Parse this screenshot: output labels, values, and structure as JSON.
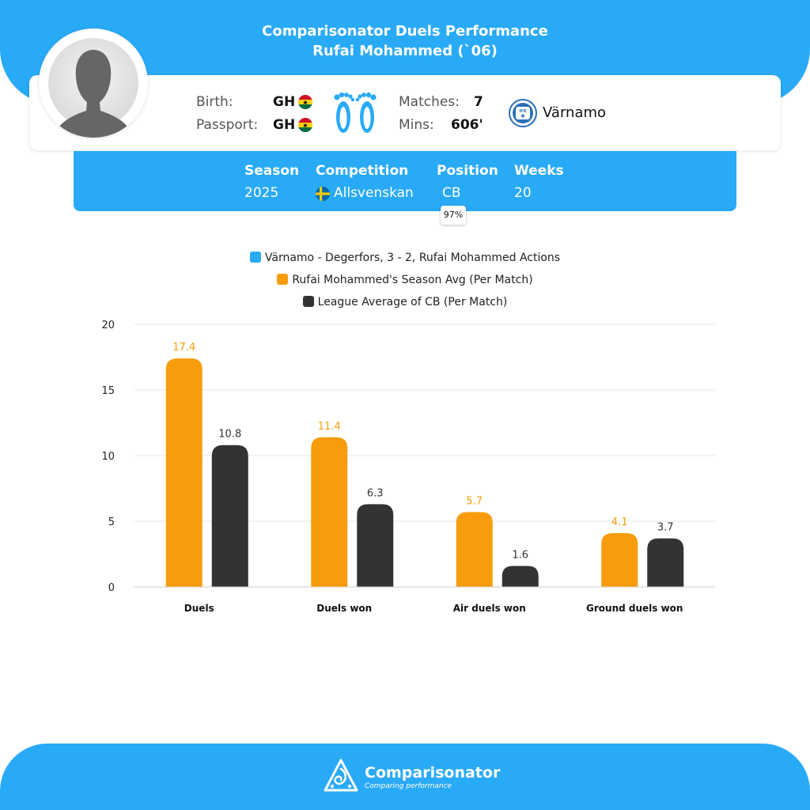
{
  "header": {
    "title_line1": "Comparisonator Duels Performance",
    "title_line2": "Rufai Mohammed (`06)"
  },
  "player": {
    "birth_label": "Birth:",
    "birth_value": "GH",
    "passport_label": "Passport:",
    "passport_value": "GH",
    "matches_label": "Matches:",
    "matches_value": "7",
    "mins_label": "Mins:",
    "mins_value": "606'",
    "club_name": "Värnamo",
    "club_crest_text": "IFK",
    "foot_icon": "both-feet-icon"
  },
  "season_info": {
    "season_label": "Season",
    "season_value": "2025",
    "competition_label": "Competition",
    "competition_value": "Allsvenskan",
    "position_label": "Position",
    "position_value": "CB",
    "weeks_label": "Weeks",
    "weeks_value": "20",
    "position_pct": "97%"
  },
  "colors": {
    "accent": "#29aaf7",
    "season_avg": "#f89c0c",
    "league_avg": "#333333"
  },
  "chart_data": {
    "type": "bar",
    "categories": [
      "Duels",
      "Duels won",
      "Air duels won",
      "Ground duels won"
    ],
    "series": [
      {
        "name": "Värnamo - Degerfors, 3 - 2, Rufai Mohammed Actions",
        "color": "#29aaf7",
        "values": [
          null,
          null,
          null,
          null
        ]
      },
      {
        "name": "Rufai Mohammed's Season Avg (Per Match)",
        "color": "#f89c0c",
        "values": [
          17.4,
          11.4,
          5.7,
          4.1
        ]
      },
      {
        "name": "League Average of CB (Per Match)",
        "color": "#333333",
        "values": [
          10.8,
          6.3,
          1.6,
          3.7
        ]
      }
    ],
    "ylim": [
      0,
      20
    ],
    "yticks": [
      0,
      5,
      10,
      15,
      20
    ],
    "grid": true,
    "legend_position": "top-center"
  },
  "footer": {
    "brand": "Comparisonator",
    "tagline": "Comparing performance"
  }
}
